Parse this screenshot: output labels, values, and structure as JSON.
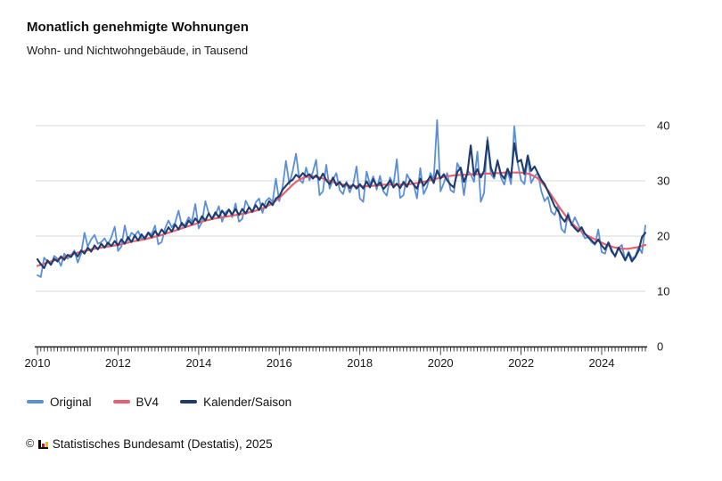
{
  "header": {
    "title": "Monatlich genehmigte Wohnungen",
    "subtitle": "Wohn- und Nichtwohngebäude, in Tausend"
  },
  "chart_data": {
    "type": "line",
    "title": "Monatlich genehmigte Wohnungen",
    "subtitle": "Wohn- und Nichtwohngebäude, in Tausend",
    "unit": "Tausend",
    "x_start": "2010-01",
    "x_end": "2025-02",
    "x_tick_labels": [
      "2010",
      "2012",
      "2014",
      "2016",
      "2018",
      "2020",
      "2022",
      "2024"
    ],
    "x_tick_interval_months": 24,
    "x_minor_tick_interval_months": 1,
    "y_ticks": [
      0,
      10,
      20,
      30,
      40
    ],
    "ylim": [
      0,
      44
    ],
    "grid": "horizontal-only",
    "grid_color": "#d9d9d9",
    "axis_color": "#1a1a1a",
    "y_axis_side": "right",
    "legend_position": "bottom-left",
    "series": [
      {
        "name": "Original",
        "color": "#5a8fd8",
        "values": [
          12.9,
          12.6,
          16.1,
          15.4,
          14.8,
          16.4,
          15.9,
          14.6,
          16.8,
          15.9,
          16.5,
          17.4,
          15.2,
          16.8,
          20.6,
          18.1,
          19.4,
          20.2,
          18.6,
          18.9,
          19.6,
          18.4,
          19.8,
          21.7,
          17.3,
          18.1,
          21.9,
          19.2,
          20.6,
          20.1,
          20.9,
          19.5,
          19.8,
          20.7,
          20.3,
          21.9,
          18.5,
          18.9,
          21.4,
          22.8,
          21.6,
          22.4,
          24.6,
          21.8,
          22.1,
          23.4,
          22.6,
          25.8,
          21.4,
          22.5,
          26.3,
          24.1,
          23.2,
          23.8,
          25.4,
          22.6,
          24.3,
          24.8,
          23.4,
          25.9,
          22.6,
          23.1,
          26.4,
          25.2,
          24.3,
          26.1,
          26.8,
          24.2,
          26.3,
          26.9,
          26.2,
          30.4,
          26.3,
          28.9,
          33.6,
          29.4,
          31.8,
          34.9,
          30.2,
          29.6,
          32.4,
          30.1,
          31.6,
          33.8,
          27.4,
          28.1,
          32.9,
          28.6,
          30.2,
          31.4,
          28.3,
          27.6,
          29.8,
          27.9,
          29.4,
          32.6,
          26.8,
          26.2,
          31.7,
          29.3,
          30.8,
          28.4,
          30.9,
          28.1,
          27.3,
          30.6,
          29.2,
          33.9,
          26.9,
          27.4,
          31.2,
          30.1,
          29.4,
          26.8,
          32.3,
          27.6,
          28.9,
          31.4,
          30.2,
          41.0,
          28.1,
          29.6,
          31.4,
          28.3,
          27.9,
          33.2,
          31.8,
          27.4,
          31.9,
          31.2,
          29.8,
          35.3,
          26.2,
          27.8,
          37.9,
          31.2,
          30.4,
          33.8,
          30.6,
          29.3,
          31.8,
          29.4,
          39.9,
          33.2,
          30.1,
          29.4,
          34.2,
          29.6,
          30.8,
          31.4,
          28.2,
          26.3,
          27.1,
          24.4,
          23.8,
          25.6,
          21.3,
          20.6,
          24.2,
          21.9,
          23.4,
          22.1,
          20.8,
          19.6,
          19.8,
          18.9,
          18.4,
          21.2,
          17.1,
          16.8,
          18.9,
          17.6,
          16.2,
          17.8,
          18.4,
          15.6,
          17.2,
          15.9,
          16.3,
          18.1,
          16.9,
          21.9
        ]
      },
      {
        "name": "BV4",
        "color": "#e9606c",
        "values": [
          14.6,
          14.8,
          15.0,
          15.2,
          15.4,
          15.6,
          15.8,
          16.0,
          16.2,
          16.4,
          16.6,
          16.8,
          17.0,
          17.1,
          17.3,
          17.4,
          17.6,
          17.7,
          17.8,
          17.9,
          18.0,
          18.1,
          18.2,
          18.3,
          18.4,
          18.5,
          18.7,
          18.8,
          19.0,
          19.1,
          19.2,
          19.3,
          19.4,
          19.6,
          19.7,
          19.9,
          20.0,
          20.2,
          20.4,
          20.6,
          20.8,
          21.0,
          21.2,
          21.4,
          21.6,
          21.8,
          22.0,
          22.2,
          22.4,
          22.6,
          22.8,
          22.9,
          23.1,
          23.2,
          23.3,
          23.4,
          23.5,
          23.6,
          23.7,
          23.8,
          23.9,
          24.0,
          24.1,
          24.3,
          24.4,
          24.6,
          24.8,
          25.0,
          25.3,
          25.6,
          26.0,
          26.4,
          26.9,
          27.5,
          28.1,
          28.7,
          29.3,
          29.8,
          30.2,
          30.5,
          30.7,
          30.8,
          30.8,
          30.7,
          30.6,
          30.4,
          30.2,
          30.0,
          29.8,
          29.6,
          29.4,
          29.3,
          29.2,
          29.1,
          29.1,
          29.0,
          29.0,
          29.0,
          29.0,
          29.1,
          29.1,
          29.2,
          29.2,
          29.3,
          29.3,
          29.3,
          29.3,
          29.3,
          29.3,
          29.3,
          29.4,
          29.4,
          29.5,
          29.6,
          29.7,
          29.8,
          30.0,
          30.1,
          30.3,
          30.4,
          30.6,
          30.7,
          30.8,
          30.9,
          31.0,
          31.0,
          31.1,
          31.1,
          31.1,
          31.2,
          31.2,
          31.2,
          31.2,
          31.3,
          31.3,
          31.3,
          31.4,
          31.4,
          31.4,
          31.5,
          31.5,
          31.5,
          31.5,
          31.5,
          31.5,
          31.4,
          31.3,
          31.1,
          30.8,
          30.4,
          29.8,
          29.1,
          28.3,
          27.4,
          26.5,
          25.6,
          24.7,
          23.9,
          23.1,
          22.4,
          21.8,
          21.3,
          20.8,
          20.4,
          20.0,
          19.7,
          19.4,
          19.1,
          18.8,
          18.5,
          18.3,
          18.1,
          17.9,
          17.8,
          17.7,
          17.7,
          17.7,
          17.8,
          17.9,
          18.0,
          18.2,
          18.4
        ]
      },
      {
        "name": "Kalender/Saison",
        "color": "#1d3c6d",
        "values": [
          15.8,
          14.9,
          14.2,
          15.6,
          14.8,
          15.9,
          15.4,
          16.3,
          15.7,
          16.6,
          16.2,
          17.1,
          16.3,
          17.4,
          16.8,
          17.9,
          17.2,
          18.3,
          17.6,
          18.6,
          17.9,
          18.8,
          18.2,
          19.1,
          18.3,
          19.4,
          18.6,
          19.8,
          18.9,
          20.1,
          19.2,
          20.3,
          19.5,
          20.6,
          19.8,
          20.9,
          20.1,
          21.2,
          20.4,
          21.6,
          20.8,
          22.1,
          21.2,
          22.4,
          21.6,
          22.8,
          22.1,
          23.2,
          22.4,
          23.6,
          22.8,
          24.1,
          23.1,
          24.3,
          23.4,
          24.6,
          23.7,
          24.8,
          23.9,
          24.9,
          23.8,
          24.9,
          24.1,
          25.2,
          24.4,
          25.6,
          24.7,
          25.9,
          25.1,
          26.3,
          25.6,
          26.8,
          27.2,
          28.4,
          29.1,
          29.8,
          30.2,
          31.1,
          30.6,
          31.4,
          30.8,
          31.2,
          30.4,
          31.0,
          30.2,
          31.3,
          30.1,
          29.4,
          30.6,
          29.2,
          29.8,
          28.9,
          29.6,
          28.7,
          29.3,
          28.6,
          29.4,
          28.6,
          29.9,
          28.8,
          30.3,
          29.1,
          29.7,
          28.5,
          29.2,
          30.1,
          28.8,
          29.5,
          28.7,
          29.8,
          28.9,
          30.2,
          29.3,
          28.6,
          30.4,
          29.1,
          29.9,
          30.8,
          29.6,
          31.9,
          30.4,
          31.2,
          30.1,
          29.3,
          28.8,
          31.6,
          32.4,
          29.8,
          31.3,
          36.4,
          30.9,
          32.1,
          30.6,
          31.8,
          37.3,
          32.4,
          30.8,
          33.6,
          31.2,
          30.4,
          32.2,
          30.6,
          36.8,
          33.4,
          33.8,
          31.2,
          34.6,
          31.8,
          32.6,
          31.4,
          30.2,
          29.4,
          28.1,
          26.8,
          25.4,
          24.6,
          23.4,
          22.6,
          23.8,
          22.2,
          21.4,
          20.8,
          21.6,
          20.4,
          19.8,
          19.2,
          18.6,
          19.4,
          18.3,
          17.6,
          18.8,
          17.2,
          16.4,
          17.9,
          16.8,
          15.6,
          16.9,
          15.4,
          16.2,
          17.4,
          19.8,
          20.6
        ]
      }
    ]
  },
  "footer": {
    "copyright_symbol": "©",
    "source": "Statistisches Bundesamt (Destatis), 2025",
    "logo_icon": {
      "name": "destatis-bar-chart",
      "bar_colors": [
        "#000000",
        "#e30613",
        "#f8bb00"
      ]
    }
  }
}
